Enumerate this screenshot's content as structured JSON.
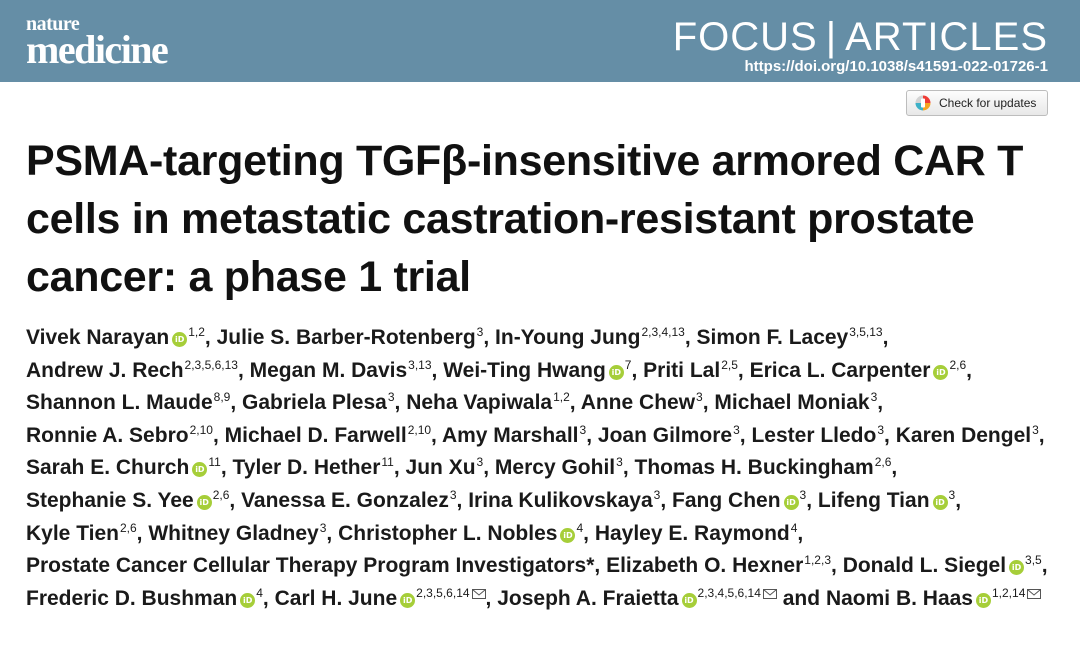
{
  "journal": {
    "logo_top": "nature",
    "logo_bottom": "medicine",
    "section_focus": "FOCUS",
    "section_separator": "|",
    "section_type": "ARTICLES",
    "doi": "https://doi.org/10.1038/s41591-022-01726-1"
  },
  "check_updates_label": "Check for updates",
  "title": "PSMA-targeting TGFβ-insensitive armored CAR T cells in metastatic castration-resistant prostate cancer: a phase 1 trial",
  "authors": [
    {
      "name": "Vivek Narayan",
      "orcid": true,
      "aff": "1,2"
    },
    {
      "name": "Julie S. Barber-Rotenberg",
      "orcid": false,
      "aff": "3"
    },
    {
      "name": "In-Young Jung",
      "orcid": false,
      "aff": "2,3,4,13"
    },
    {
      "name": "Simon F. Lacey",
      "orcid": false,
      "aff": "3,5,13"
    },
    {
      "name": "Andrew J. Rech",
      "orcid": false,
      "aff": "2,3,5,6,13"
    },
    {
      "name": "Megan M. Davis",
      "orcid": false,
      "aff": "3,13"
    },
    {
      "name": "Wei-Ting Hwang",
      "orcid": true,
      "aff": "7"
    },
    {
      "name": "Priti Lal",
      "orcid": false,
      "aff": "2,5"
    },
    {
      "name": "Erica L. Carpenter",
      "orcid": true,
      "aff": "2,6"
    },
    {
      "name": "Shannon L. Maude",
      "orcid": false,
      "aff": "8,9"
    },
    {
      "name": "Gabriela Plesa",
      "orcid": false,
      "aff": "3"
    },
    {
      "name": "Neha Vapiwala",
      "orcid": false,
      "aff": "1,2"
    },
    {
      "name": "Anne Chew",
      "orcid": false,
      "aff": "3"
    },
    {
      "name": "Michael Moniak",
      "orcid": false,
      "aff": "3"
    },
    {
      "name": "Ronnie A. Sebro",
      "orcid": false,
      "aff": "2,10"
    },
    {
      "name": "Michael D. Farwell",
      "orcid": false,
      "aff": "2,10"
    },
    {
      "name": "Amy Marshall",
      "orcid": false,
      "aff": "3"
    },
    {
      "name": "Joan Gilmore",
      "orcid": false,
      "aff": "3"
    },
    {
      "name": "Lester Lledo",
      "orcid": false,
      "aff": "3"
    },
    {
      "name": "Karen Dengel",
      "orcid": false,
      "aff": "3"
    },
    {
      "name": "Sarah E. Church",
      "orcid": true,
      "aff": "11"
    },
    {
      "name": "Tyler D. Hether",
      "orcid": false,
      "aff": "11"
    },
    {
      "name": "Jun Xu",
      "orcid": false,
      "aff": "3"
    },
    {
      "name": "Mercy Gohil",
      "orcid": false,
      "aff": "3"
    },
    {
      "name": "Thomas H. Buckingham",
      "orcid": false,
      "aff": "2,6"
    },
    {
      "name": "Stephanie S. Yee",
      "orcid": true,
      "aff": "2,6"
    },
    {
      "name": "Vanessa E. Gonzalez",
      "orcid": false,
      "aff": "3"
    },
    {
      "name": "Irina Kulikovskaya",
      "orcid": false,
      "aff": "3"
    },
    {
      "name": "Fang Chen",
      "orcid": true,
      "aff": "3"
    },
    {
      "name": "Lifeng Tian",
      "orcid": true,
      "aff": "3"
    },
    {
      "name": "Kyle Tien",
      "orcid": false,
      "aff": "2,6"
    },
    {
      "name": "Whitney Gladney",
      "orcid": false,
      "aff": "3"
    },
    {
      "name": "Christopher L. Nobles",
      "orcid": true,
      "aff": "4"
    },
    {
      "name": "Hayley E. Raymond",
      "orcid": false,
      "aff": "4"
    },
    {
      "name": "Prostate Cancer Cellular Therapy Program Investigators*",
      "orcid": false,
      "aff": ""
    },
    {
      "name": "Elizabeth O. Hexner",
      "orcid": false,
      "aff": "1,2,3"
    },
    {
      "name": "Donald L. Siegel",
      "orcid": true,
      "aff": "3,5"
    },
    {
      "name": "Frederic D. Bushman",
      "orcid": true,
      "aff": "4"
    },
    {
      "name": "Carl H. June",
      "orcid": true,
      "aff": "2,3,5,6,14",
      "mail": true
    },
    {
      "name": "Joseph A. Fraietta",
      "orcid": true,
      "aff": "2,3,4,5,6,14",
      "mail": true
    },
    {
      "name": "Naomi B. Haas",
      "orcid": true,
      "aff": "1,2,14",
      "mail": true,
      "prefix": "and"
    }
  ],
  "colors": {
    "header": "#658ea6",
    "orcid": "#a6ce39"
  }
}
